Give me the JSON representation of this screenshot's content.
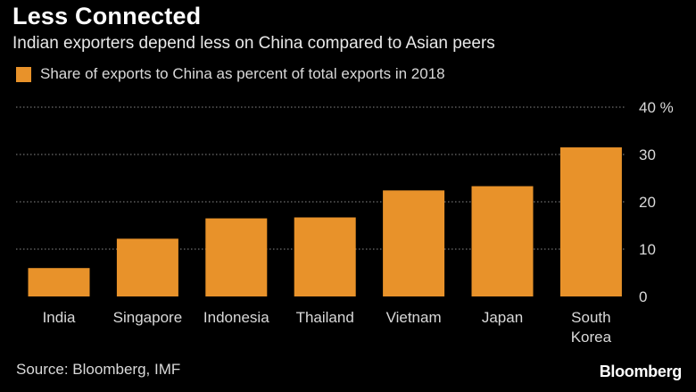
{
  "header": {
    "title": "Less Connected",
    "subtitle": "Indian exporters depend less on China compared to Asian peers"
  },
  "footer": {
    "source": "Source: Bloomberg, IMF",
    "brand": "Bloomberg"
  },
  "colors": {
    "background": "#000000",
    "bar": "#E8922A",
    "grid": "#8a8a8a",
    "text": "#ffffff"
  },
  "chart_data": {
    "type": "bar",
    "categories": [
      "India",
      "Singapore",
      "Indonesia",
      "Thailand",
      "Vietnam",
      "Japan",
      "South Korea"
    ],
    "category_lines": [
      [
        "India"
      ],
      [
        "Singapore"
      ],
      [
        "Indonesia"
      ],
      [
        "Thailand"
      ],
      [
        "Vietnam"
      ],
      [
        "Japan"
      ],
      [
        "South",
        "Korea"
      ]
    ],
    "series": [
      {
        "name": "Share of exports to China as percent of total exports in 2018",
        "values": [
          6.0,
          12.2,
          16.5,
          16.7,
          22.4,
          23.3,
          31.5
        ]
      }
    ],
    "ylim": [
      0,
      40
    ],
    "yticks": [
      0,
      10,
      20,
      30,
      40
    ],
    "ytick_labels": [
      "0",
      "10",
      "20",
      "30",
      "40 %"
    ],
    "grid": true,
    "legend_position": "top-left",
    "y_axis_side": "right"
  }
}
